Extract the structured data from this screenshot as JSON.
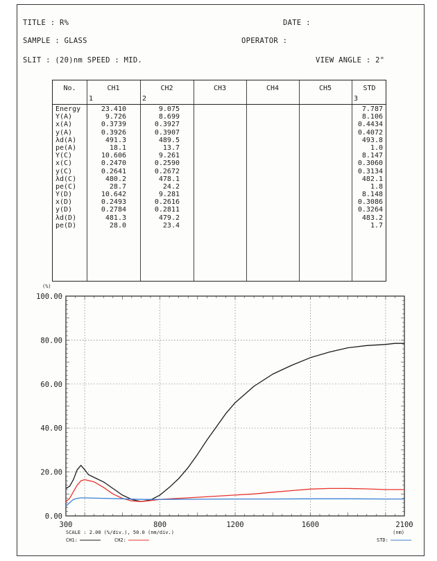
{
  "header": {
    "title": "TITLE  :  R%",
    "date": "DATE :",
    "sample": "SAMPLE : GLASS",
    "operator": "OPERATOR :",
    "slit_speed": "SLIT : (20)nm   SPEED : MID.",
    "view_angle": "VIEW ANGLE : 2°"
  },
  "table": {
    "headers": [
      "No.",
      "CH1",
      "CH2",
      "CH3",
      "CH4",
      "CH5",
      "STD"
    ],
    "subnums": {
      "ch1": "1",
      "ch2": "2",
      "std": "3"
    },
    "labels": [
      "Energy",
      "Y(A)",
      "x(A)",
      "y(A)",
      "λd(A)",
      "pe(A)",
      "Y(C)",
      "x(C)",
      "y(C)",
      "λd(C)",
      "pe(C)",
      "Y(D)",
      "x(D)",
      "y(D)",
      "λd(D)",
      "pe(D)"
    ],
    "ch1": [
      "23.410",
      "9.726",
      "0.3739",
      "0.3926",
      "491.3",
      "18.1",
      "10.606",
      "0.2470",
      "0.2641",
      "480.2",
      "28.7",
      "10.642",
      "0.2493",
      "0.2784",
      "481.3",
      "28.0"
    ],
    "ch2": [
      "9.075",
      "8.699",
      "0.3927",
      "0.3907",
      "489.5",
      "13.7",
      "9.261",
      "0.2590",
      "0.2672",
      "478.1",
      "24.2",
      "9.281",
      "0.2616",
      "0.2811",
      "479.2",
      "23.4"
    ],
    "std": [
      "7.787",
      "8.106",
      "0.4434",
      "0.4072",
      "493.8",
      "1.0",
      "8.147",
      "0.3060",
      "0.3134",
      "482.1",
      "1.8",
      "8.148",
      "0.3086",
      "0.3264",
      "483.2",
      "1.7"
    ]
  },
  "chart_data": {
    "type": "line",
    "y_unit": "(%)",
    "x_unit": "(nm)",
    "ylim": [
      0,
      100
    ],
    "xlim": [
      300,
      2100
    ],
    "y_ticks": [
      "0.00",
      "20.00",
      "40.00",
      "60.00",
      "80.00",
      "100.00"
    ],
    "x_ticks": [
      "300",
      "800",
      "1200",
      "1600",
      "2100"
    ],
    "grid": true,
    "scale_text": "SCALE : 2.00 (%/div.),  50.0 (nm/div.)",
    "legend": {
      "ch1": "CH1:",
      "ch2": "CH2:",
      "std": "STD:"
    },
    "colors": {
      "ch1": "#1a1a1a",
      "ch2": "#e8322c",
      "std": "#3a7fd6"
    },
    "series": [
      {
        "key": "ch1",
        "x": [
          300,
          320,
          340,
          360,
          380,
          400,
          420,
          450,
          500,
          550,
          600,
          650,
          700,
          750,
          800,
          850,
          900,
          950,
          1000,
          1050,
          1100,
          1150,
          1200,
          1300,
          1400,
          1500,
          1600,
          1700,
          1800,
          1900,
          2000,
          2050,
          2100
        ],
        "y": [
          12.5,
          13.5,
          16.5,
          21.0,
          23.0,
          21.0,
          18.8,
          17.5,
          15.5,
          12.5,
          9.5,
          7.5,
          6.5,
          7.3,
          9.5,
          13.0,
          17.0,
          22.0,
          28.0,
          34.5,
          40.5,
          46.5,
          51.5,
          59.0,
          64.5,
          68.5,
          72.0,
          74.5,
          76.5,
          77.5,
          78.0,
          78.5,
          78.5
        ]
      },
      {
        "key": "ch2",
        "x": [
          300,
          320,
          340,
          360,
          380,
          400,
          450,
          500,
          550,
          600,
          650,
          700,
          750,
          800,
          900,
          1000,
          1100,
          1200,
          1300,
          1400,
          1500,
          1600,
          1700,
          1800,
          1900,
          2000,
          2100
        ],
        "y": [
          6.5,
          8.0,
          11.0,
          14.0,
          16.0,
          16.5,
          15.5,
          13.0,
          10.0,
          8.0,
          6.8,
          6.5,
          7.0,
          7.5,
          8.0,
          8.5,
          9.0,
          9.5,
          10.0,
          10.8,
          11.5,
          12.2,
          12.5,
          12.5,
          12.3,
          12.0,
          12.0
        ]
      },
      {
        "key": "std",
        "x": [
          300,
          320,
          340,
          360,
          380,
          400,
          500,
          600,
          700,
          800,
          1000,
          1200,
          1400,
          1600,
          1800,
          2000,
          2100
        ],
        "y": [
          4.5,
          6.0,
          7.5,
          8.0,
          8.2,
          8.2,
          8.0,
          7.8,
          7.5,
          7.5,
          7.6,
          7.7,
          7.7,
          7.8,
          7.8,
          7.7,
          7.7
        ]
      }
    ]
  }
}
